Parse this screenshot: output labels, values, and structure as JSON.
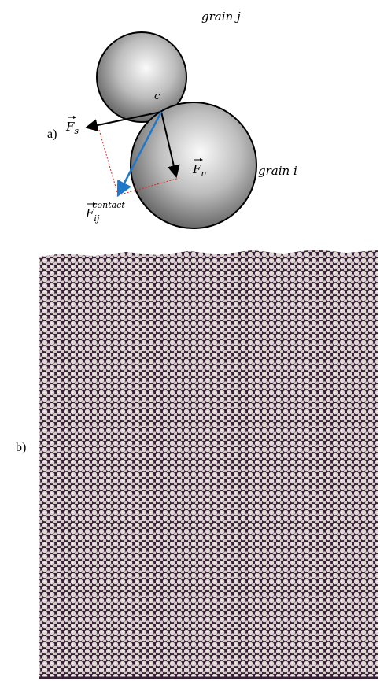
{
  "panel_a": {
    "label": "a)",
    "grain_j": "grain j",
    "grain_i": "grain i",
    "contact_point": "c",
    "force_s": {
      "symbol": "F",
      "subscript": "s"
    },
    "force_n": {
      "symbol": "F",
      "subscript": "n"
    },
    "force_contact": {
      "symbol": "F",
      "subscript": "ij",
      "superscript": "contact"
    }
  },
  "panel_b": {
    "label": "b)"
  }
}
